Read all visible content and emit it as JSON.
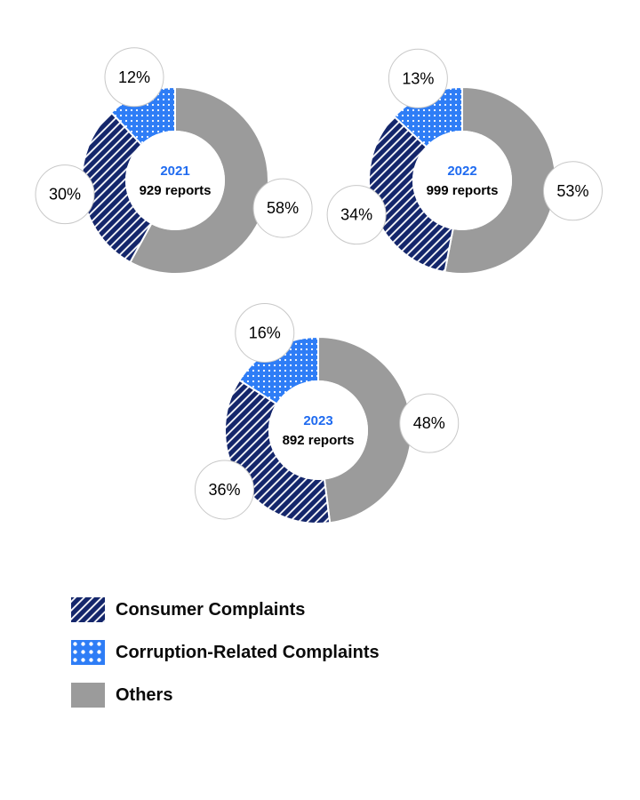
{
  "colors": {
    "navy": "#14266b",
    "blue": "#2e7df6",
    "gray": "#9b9b9b",
    "year_text": "#1f6bf0",
    "label_circle_border": "#c8c8c8",
    "text": "#000000"
  },
  "chart_data": [
    {
      "type": "pie",
      "style": "donut",
      "center_title": "2021",
      "center_subtitle": "929 reports",
      "unit": "%",
      "segments": [
        {
          "category": "Others",
          "value": 58,
          "label": "58%",
          "pattern": "gray-solid"
        },
        {
          "category": "Consumer Complaints",
          "value": 30,
          "label": "30%",
          "pattern": "navy-hatch"
        },
        {
          "category": "Corruption-Related Complaints",
          "value": 12,
          "label": "12%",
          "pattern": "blue-dots"
        }
      ]
    },
    {
      "type": "pie",
      "style": "donut",
      "center_title": "2022",
      "center_subtitle": "999 reports",
      "unit": "%",
      "segments": [
        {
          "category": "Others",
          "value": 53,
          "label": "53%",
          "pattern": "gray-solid"
        },
        {
          "category": "Consumer Complaints",
          "value": 34,
          "label": "34%",
          "pattern": "navy-hatch"
        },
        {
          "category": "Corruption-Related Complaints",
          "value": 13,
          "label": "13%",
          "pattern": "blue-dots"
        }
      ]
    },
    {
      "type": "pie",
      "style": "donut",
      "center_title": "2023",
      "center_subtitle": "892 reports",
      "unit": "%",
      "segments": [
        {
          "category": "Others",
          "value": 48,
          "label": "48%",
          "pattern": "gray-solid"
        },
        {
          "category": "Consumer Complaints",
          "value": 36,
          "label": "36%",
          "pattern": "navy-hatch"
        },
        {
          "category": "Corruption-Related Complaints",
          "value": 16,
          "label": "16%",
          "pattern": "blue-dots"
        }
      ]
    }
  ],
  "legend": {
    "items": [
      {
        "label": "Consumer Complaints",
        "pattern": "navy-hatch"
      },
      {
        "label": "Corruption-Related Complaints",
        "pattern": "blue-dots"
      },
      {
        "label": "Others",
        "pattern": "gray-solid"
      }
    ]
  }
}
